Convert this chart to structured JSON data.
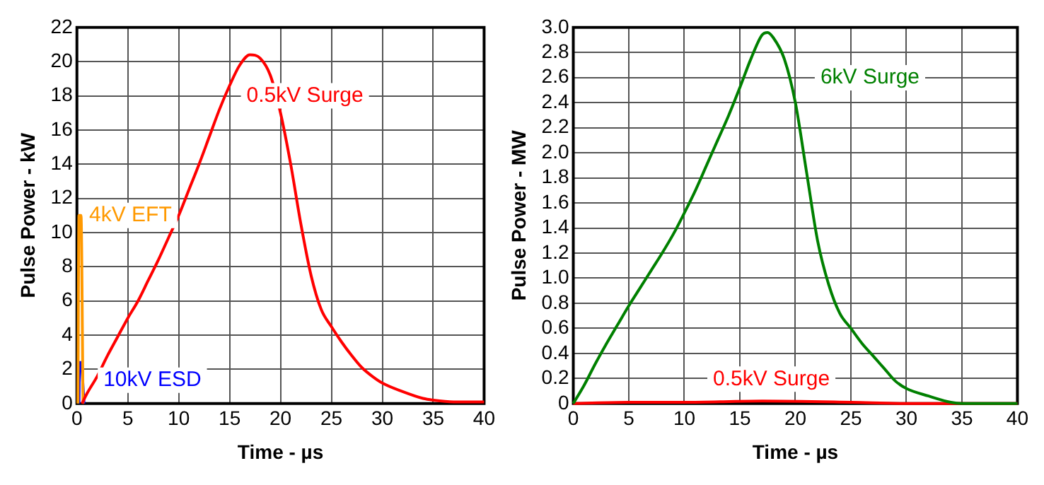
{
  "chart_data": [
    {
      "type": "line",
      "xlabel": "Time - µs",
      "ylabel": "Pulse Power - kW",
      "xlim": [
        0,
        40
      ],
      "ylim": [
        0,
        22
      ],
      "xticks": [
        0,
        5,
        10,
        15,
        20,
        25,
        30,
        35,
        40
      ],
      "yticks": [
        0,
        2,
        4,
        6,
        8,
        10,
        12,
        14,
        16,
        18,
        20,
        22
      ],
      "grid": true,
      "legend": false,
      "marker": "none",
      "line_style": "solid",
      "series": [
        {
          "name": "0.5kV Surge",
          "color": "#ff0000",
          "x": [
            0.5,
            1,
            2,
            3,
            4,
            5,
            6,
            7,
            8,
            9,
            10,
            11,
            12,
            13,
            14,
            15,
            16,
            17,
            18,
            19,
            20,
            21,
            22,
            23,
            24,
            25,
            26,
            27,
            28,
            29,
            30,
            32,
            34,
            35,
            37,
            40
          ],
          "values": [
            0,
            0.6,
            1.6,
            2.8,
            3.9,
            5,
            6,
            7.2,
            8.4,
            9.7,
            11,
            12.5,
            14,
            15.6,
            17.2,
            18.6,
            19.8,
            20.4,
            20.2,
            19.2,
            17,
            14,
            10.5,
            7.5,
            5.5,
            4.5,
            3.6,
            2.8,
            2.1,
            1.6,
            1.2,
            0.7,
            0.3,
            0.2,
            0.1,
            0.1
          ]
        },
        {
          "name": "4kV EFT",
          "color": "#ff9900",
          "x": [
            0.1,
            0.2,
            0.4,
            0.6
          ],
          "values": [
            0,
            11,
            11,
            0
          ]
        },
        {
          "name": "10kV ESD",
          "color": "#0000ff",
          "x": [
            0.2,
            0.25,
            0.4,
            0.7
          ],
          "values": [
            0,
            2.4,
            2.4,
            0
          ]
        }
      ]
    },
    {
      "type": "line",
      "xlabel": "Time - µs",
      "ylabel": "Pulse Power - MW",
      "xlim": [
        0,
        40
      ],
      "ylim": [
        0,
        3
      ],
      "xticks": [
        0,
        5,
        10,
        15,
        20,
        25,
        30,
        35,
        40
      ],
      "yticks": [
        {
          "value": 0,
          "label": "0"
        },
        {
          "value": 0.2,
          "label": "0.2"
        },
        {
          "value": 0.4,
          "label": "0.4"
        },
        {
          "value": 0.6,
          "label": "0.6"
        },
        {
          "value": 0.8,
          "label": "0.8"
        },
        {
          "value": 1,
          "label": "1.0"
        },
        {
          "value": 1.2,
          "label": "1.2"
        },
        {
          "value": 1.4,
          "label": "1.4"
        },
        {
          "value": 1.6,
          "label": "1.6"
        },
        {
          "value": 1.8,
          "label": "1.8"
        },
        {
          "value": 2,
          "label": "2.0"
        },
        {
          "value": 2.2,
          "label": "2.2"
        },
        {
          "value": 2.4,
          "label": "2.4"
        },
        {
          "value": 2.6,
          "label": "2.6"
        },
        {
          "value": 2.8,
          "label": "2.8"
        },
        {
          "value": 3,
          "label": "3.0"
        }
      ],
      "grid": true,
      "legend": false,
      "marker": "none",
      "line_style": "solid",
      "series": [
        {
          "name": "6kV Surge",
          "color": "#008000",
          "x": [
            0,
            1,
            2,
            3,
            4,
            5,
            6,
            7,
            8,
            9,
            10,
            11,
            12,
            13,
            14,
            15,
            16,
            17,
            17.5,
            18,
            19,
            20,
            21,
            22,
            23,
            24,
            25,
            26,
            27,
            28,
            29,
            30,
            32,
            34,
            35,
            40
          ],
          "values": [
            0,
            0.15,
            0.32,
            0.48,
            0.63,
            0.78,
            0.92,
            1.06,
            1.2,
            1.35,
            1.52,
            1.7,
            1.9,
            2.1,
            2.3,
            2.52,
            2.75,
            2.94,
            2.96,
            2.92,
            2.75,
            2.4,
            1.85,
            1.3,
            0.95,
            0.72,
            0.6,
            0.48,
            0.38,
            0.28,
            0.18,
            0.12,
            0.06,
            0.01,
            0,
            0
          ]
        },
        {
          "name": "0.5kV Surge",
          "color": "#ff0000",
          "x": [
            0,
            5,
            10,
            17,
            25,
            30,
            40
          ],
          "values": [
            0,
            0.01,
            0.01,
            0.02,
            0.01,
            0,
            0
          ]
        }
      ]
    }
  ]
}
